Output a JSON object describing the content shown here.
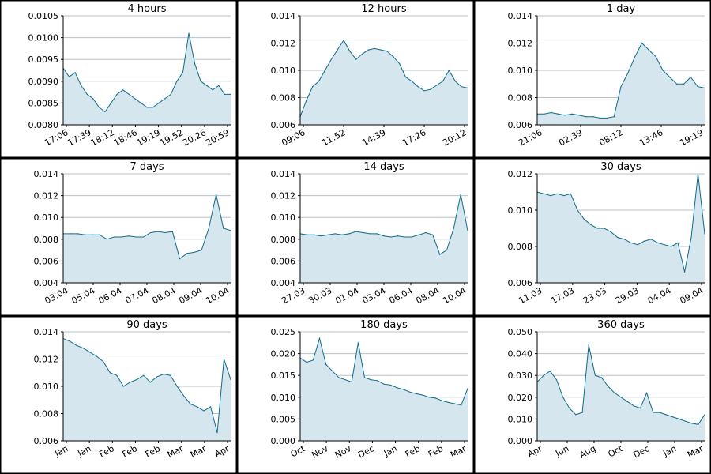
{
  "chart_data": [
    {
      "title": "4 hours",
      "type": "area",
      "ylim": [
        0.008,
        0.0105
      ],
      "yticks": [
        "0.0080",
        "0.0085",
        "0.0090",
        "0.0095",
        "0.0100",
        "0.0105"
      ],
      "xticks": [
        "17:06",
        "17:39",
        "18:12",
        "18:46",
        "19:19",
        "19:52",
        "20:26",
        "20:59"
      ],
      "series": [
        {
          "values": [
            0.0093,
            0.0091,
            0.0092,
            0.0089,
            0.0087,
            0.0086,
            0.0084,
            0.0083,
            0.0085,
            0.0087,
            0.0088,
            0.0087,
            0.0086,
            0.0085,
            0.0084,
            0.0084,
            0.0085,
            0.0086,
            0.0087,
            0.009,
            0.0092,
            0.0101,
            0.0094,
            0.009,
            0.0089,
            0.0088,
            0.0089,
            0.0087,
            0.0087
          ]
        }
      ],
      "grid": true,
      "legend": "none"
    },
    {
      "title": "12 hours",
      "type": "area",
      "ylim": [
        0.006,
        0.014
      ],
      "yticks": [
        "0.006",
        "0.008",
        "0.010",
        "0.012",
        "0.014"
      ],
      "xticks": [
        "09:06",
        "11:52",
        "14:39",
        "17:26",
        "20:12"
      ],
      "series": [
        {
          "values": [
            0.0066,
            0.0078,
            0.0088,
            0.0092,
            0.01,
            0.0108,
            0.0115,
            0.0122,
            0.0114,
            0.0108,
            0.0112,
            0.0115,
            0.0116,
            0.0115,
            0.0114,
            0.011,
            0.0105,
            0.0095,
            0.0092,
            0.0088,
            0.0085,
            0.0086,
            0.0089,
            0.0092,
            0.01,
            0.0092,
            0.0088,
            0.0087
          ]
        }
      ],
      "grid": true,
      "legend": "none"
    },
    {
      "title": "1 day",
      "type": "area",
      "ylim": [
        0.006,
        0.014
      ],
      "yticks": [
        "0.006",
        "0.008",
        "0.010",
        "0.012",
        "0.014"
      ],
      "xticks": [
        "21:06",
        "02:39",
        "08:12",
        "13:46",
        "19:19"
      ],
      "series": [
        {
          "values": [
            0.0068,
            0.0068,
            0.0069,
            0.0068,
            0.0067,
            0.0068,
            0.0067,
            0.0066,
            0.0066,
            0.0065,
            0.0065,
            0.0066,
            0.0088,
            0.0098,
            0.011,
            0.012,
            0.0115,
            0.011,
            0.01,
            0.0095,
            0.009,
            0.009,
            0.0095,
            0.0088,
            0.0087
          ]
        }
      ],
      "grid": true,
      "legend": "none"
    },
    {
      "title": "7 days",
      "type": "area",
      "ylim": [
        0.004,
        0.014
      ],
      "yticks": [
        "0.004",
        "0.006",
        "0.008",
        "0.010",
        "0.012",
        "0.014"
      ],
      "xticks": [
        "03.04",
        "05.04",
        "06.04",
        "07.04",
        "08.04",
        "09.04",
        "10.04"
      ],
      "series": [
        {
          "values": [
            0.0085,
            0.0085,
            0.0085,
            0.0084,
            0.0084,
            0.0084,
            0.008,
            0.0082,
            0.0082,
            0.0083,
            0.0082,
            0.0082,
            0.0086,
            0.0087,
            0.0086,
            0.0087,
            0.0062,
            0.0067,
            0.0068,
            0.007,
            0.009,
            0.0121,
            0.009,
            0.0088
          ]
        }
      ],
      "grid": true,
      "legend": "none"
    },
    {
      "title": "14 days",
      "type": "area",
      "ylim": [
        0.004,
        0.014
      ],
      "yticks": [
        "0.004",
        "0.006",
        "0.008",
        "0.010",
        "0.012",
        "0.014"
      ],
      "xticks": [
        "27.03",
        "30.03",
        "01.04",
        "03.04",
        "06.04",
        "08.04",
        "10.04"
      ],
      "series": [
        {
          "values": [
            0.0085,
            0.0084,
            0.0084,
            0.0083,
            0.0084,
            0.0085,
            0.0084,
            0.0085,
            0.0087,
            0.0086,
            0.0085,
            0.0085,
            0.0083,
            0.0082,
            0.0083,
            0.0082,
            0.0082,
            0.0084,
            0.0086,
            0.0084,
            0.0066,
            0.007,
            0.009,
            0.0121,
            0.0088
          ]
        }
      ],
      "grid": true,
      "legend": "none"
    },
    {
      "title": "30 days",
      "type": "area",
      "ylim": [
        0.006,
        0.012
      ],
      "yticks": [
        "0.006",
        "0.008",
        "0.010",
        "0.012"
      ],
      "xticks": [
        "11.03",
        "17.03",
        "23.03",
        "29.03",
        "04.04",
        "09.04"
      ],
      "series": [
        {
          "values": [
            0.011,
            0.0109,
            0.0108,
            0.0109,
            0.0108,
            0.0109,
            0.01,
            0.0095,
            0.0092,
            0.009,
            0.009,
            0.0088,
            0.0085,
            0.0084,
            0.0082,
            0.0081,
            0.0083,
            0.0084,
            0.0082,
            0.0081,
            0.008,
            0.0082,
            0.0066,
            0.0085,
            0.012,
            0.0087
          ]
        }
      ],
      "grid": true,
      "legend": "none"
    },
    {
      "title": "90 days",
      "type": "area",
      "ylim": [
        0.006,
        0.014
      ],
      "yticks": [
        "0.006",
        "0.008",
        "0.010",
        "0.012",
        "0.014"
      ],
      "xticks": [
        "Jan",
        "Jan",
        "Feb",
        "Feb",
        "Feb",
        "Mar",
        "Mar",
        "Apr"
      ],
      "series": [
        {
          "values": [
            0.0135,
            0.0133,
            0.013,
            0.0128,
            0.0125,
            0.0122,
            0.0118,
            0.011,
            0.0108,
            0.01,
            0.0103,
            0.0105,
            0.0108,
            0.0103,
            0.0107,
            0.0109,
            0.0108,
            0.01,
            0.0093,
            0.0087,
            0.0085,
            0.0082,
            0.0085,
            0.0066,
            0.012,
            0.0105
          ]
        }
      ],
      "grid": true,
      "legend": "none"
    },
    {
      "title": "180 days",
      "type": "area",
      "ylim": [
        0.0,
        0.025
      ],
      "yticks": [
        "0.000",
        "0.005",
        "0.010",
        "0.015",
        "0.020",
        "0.025"
      ],
      "xticks": [
        "Oct",
        "Nov",
        "Nov",
        "Dec",
        "Jan",
        "Feb",
        "Feb",
        "Mar"
      ],
      "series": [
        {
          "values": [
            0.019,
            0.018,
            0.0185,
            0.0235,
            0.0175,
            0.016,
            0.0145,
            0.014,
            0.0135,
            0.0225,
            0.0145,
            0.014,
            0.0138,
            0.013,
            0.0128,
            0.0122,
            0.0118,
            0.0112,
            0.0108,
            0.0105,
            0.01,
            0.0098,
            0.0092,
            0.0088,
            0.0085,
            0.0082,
            0.012
          ]
        }
      ],
      "grid": true,
      "legend": "none"
    },
    {
      "title": "360 days",
      "type": "area",
      "ylim": [
        0.0,
        0.05
      ],
      "yticks": [
        "0.000",
        "0.010",
        "0.020",
        "0.030",
        "0.040",
        "0.050"
      ],
      "xticks": [
        "Apr",
        "Jun",
        "Aug",
        "Oct",
        "Dec",
        "Jan",
        "Mar"
      ],
      "series": [
        {
          "values": [
            0.027,
            0.03,
            0.032,
            0.028,
            0.02,
            0.015,
            0.012,
            0.013,
            0.044,
            0.03,
            0.029,
            0.025,
            0.022,
            0.02,
            0.018,
            0.016,
            0.015,
            0.022,
            0.013,
            0.013,
            0.012,
            0.011,
            0.01,
            0.009,
            0.008,
            0.0075,
            0.012
          ]
        }
      ],
      "grid": true,
      "legend": "none"
    }
  ]
}
